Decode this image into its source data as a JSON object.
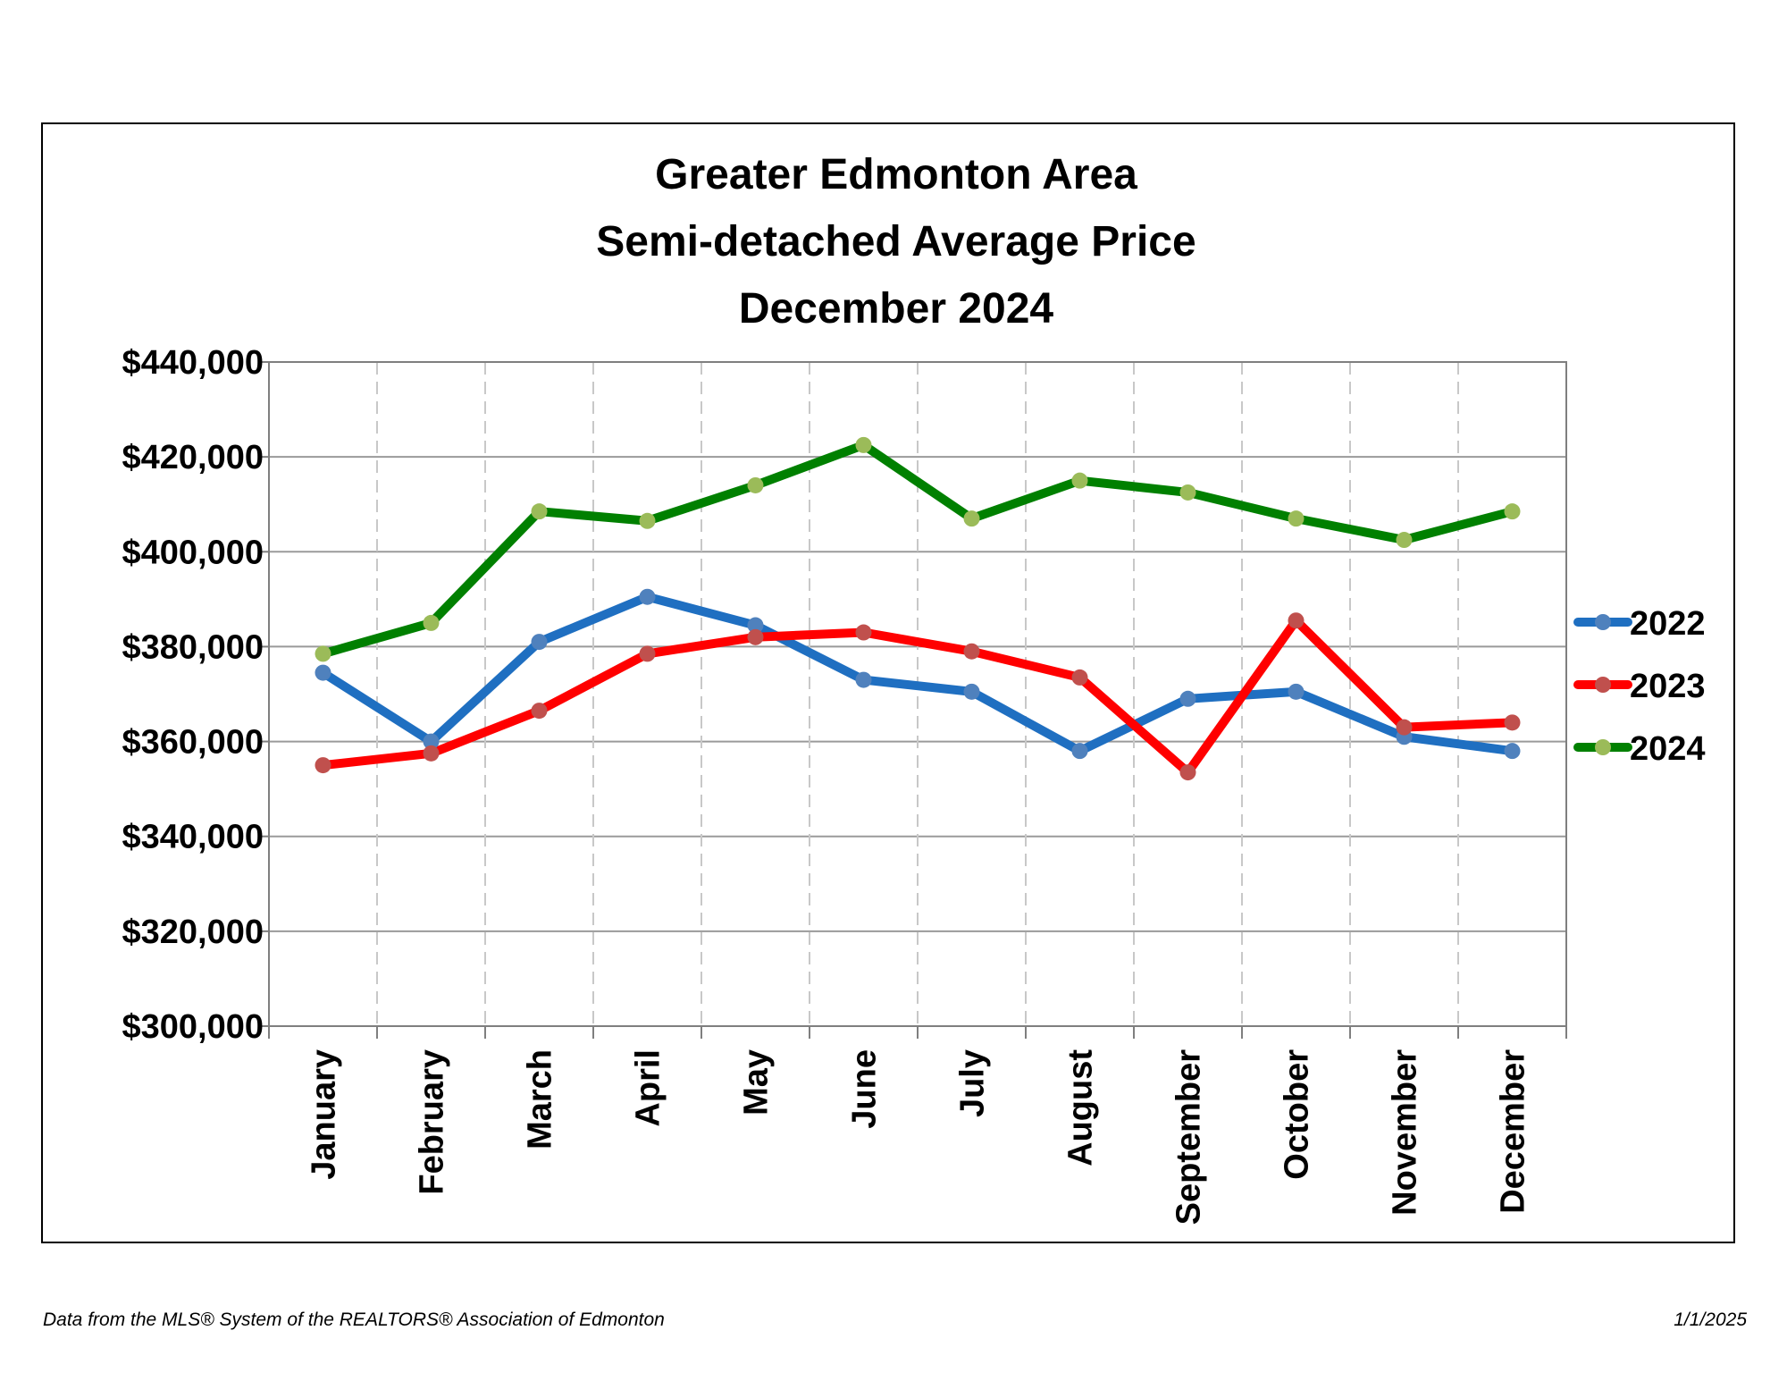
{
  "chart_data": {
    "type": "line",
    "title": [
      "Greater Edmonton Area",
      "Semi-detached Average Price",
      "December 2024"
    ],
    "categories": [
      "January",
      "February",
      "March",
      "April",
      "May",
      "June",
      "July",
      "August",
      "September",
      "October",
      "November",
      "December"
    ],
    "ylim": [
      300000,
      440000
    ],
    "yticks": [
      300000,
      320000,
      340000,
      360000,
      380000,
      400000,
      420000,
      440000
    ],
    "ytick_labels": [
      "$300,000",
      "$320,000",
      "$340,000",
      "$360,000",
      "$380,000",
      "$400,000",
      "$420,000",
      "$440,000"
    ],
    "grid": {
      "horizontal": true,
      "vertical_dashed": true
    },
    "legend_position": "right",
    "series": [
      {
        "name": "2022",
        "color": "#1f6fc1",
        "marker_color": "#4f81bd",
        "values": [
          374500,
          360000,
          381000,
          390500,
          384500,
          373000,
          370500,
          358000,
          369000,
          370500,
          361000,
          358000
        ]
      },
      {
        "name": "2023",
        "color": "#ff0000",
        "marker_color": "#c0504d",
        "values": [
          355000,
          357500,
          366500,
          378500,
          382000,
          383000,
          379000,
          373500,
          353500,
          385500,
          363000,
          364000
        ]
      },
      {
        "name": "2024",
        "color": "#008000",
        "marker_color": "#9bbb59",
        "values": [
          378500,
          385000,
          408500,
          406500,
          414000,
          422500,
          407000,
          415000,
          412500,
          407000,
          402500,
          408500
        ]
      }
    ]
  },
  "footer": {
    "source": "Data from the MLS® System of the REALTORS® Association of Edmonton",
    "date": "1/1/2025"
  }
}
